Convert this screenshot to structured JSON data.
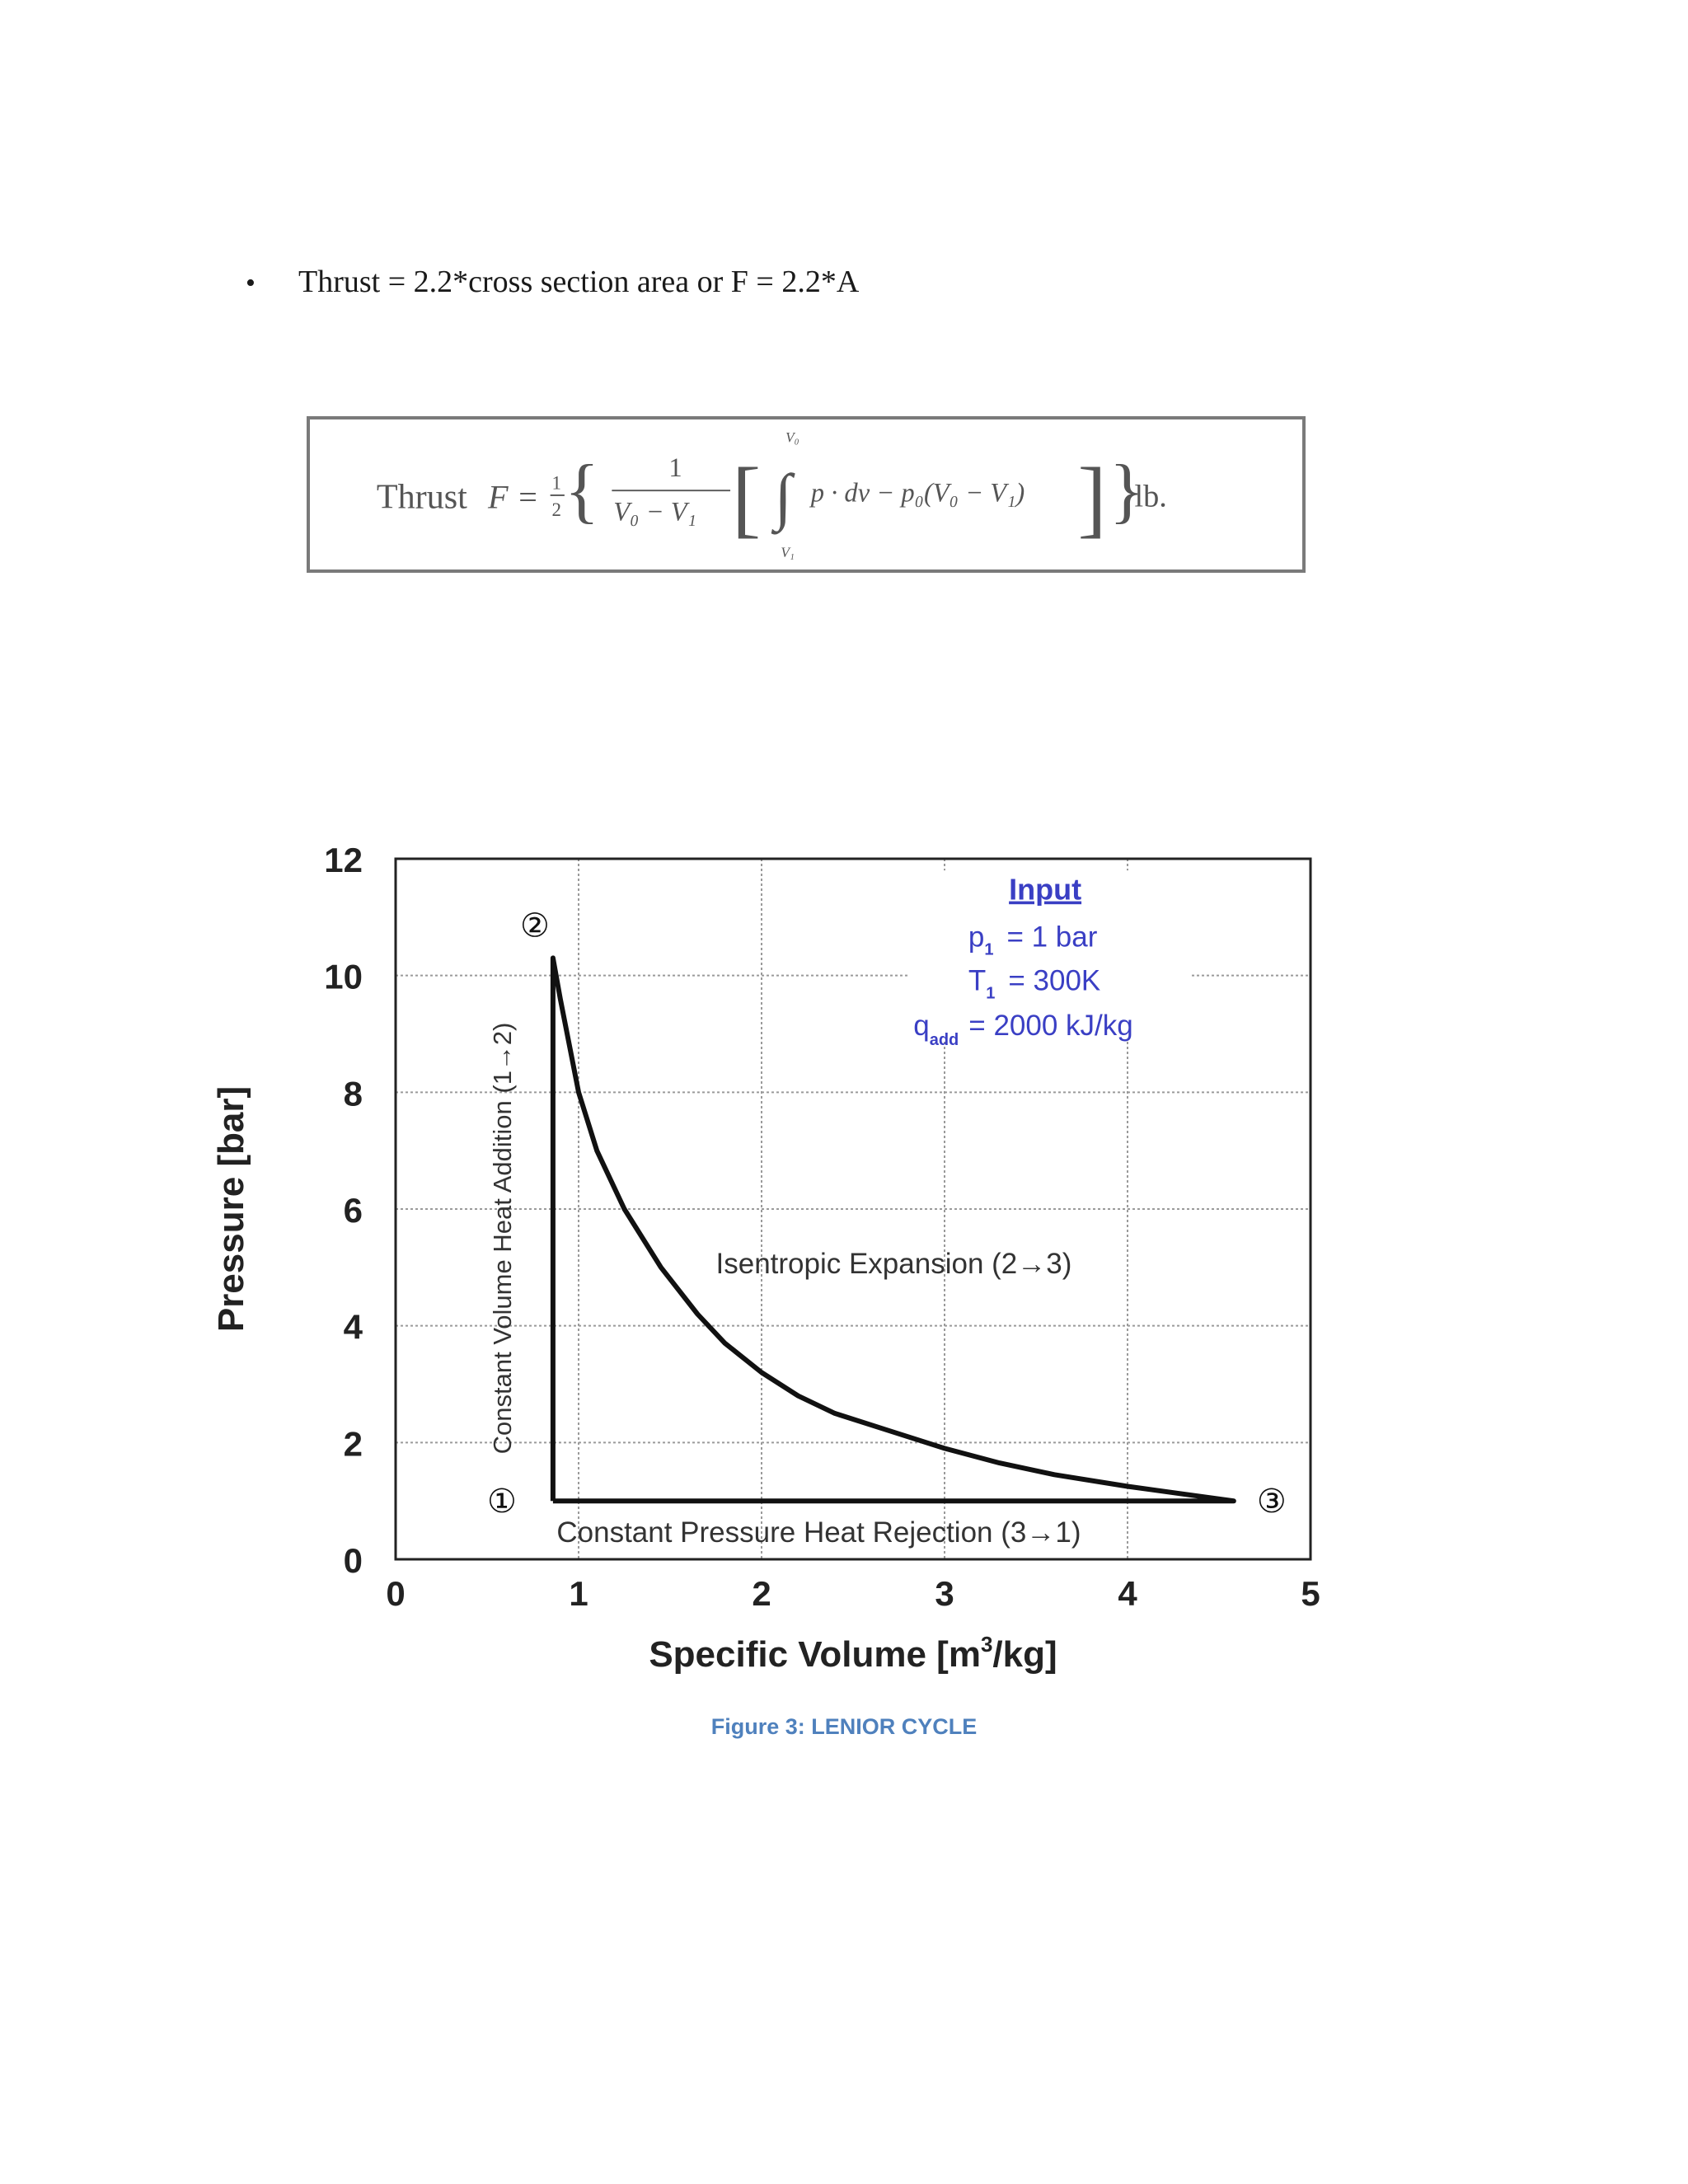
{
  "bullet": {
    "marker": "•",
    "text": "Thrust = 2.2*cross section area or F = 2.2*A"
  },
  "formula": {
    "lhs": "Thrust",
    "F_equals": "F =",
    "half_num": "1",
    "half_den": "2",
    "frac_num": "1",
    "frac_den": "V₀ − V₁",
    "integrand": "p · dv − p₀(V₀ − V₁)",
    "int_upper": "V₀",
    "int_lower": "V₁",
    "unit": "lb."
  },
  "chart_data": {
    "type": "line",
    "xlabel": "Specific Volume [m³/kg]",
    "xlabel_main": "Specific Volume [m",
    "xlabel_sup": "3",
    "xlabel_tail": "/kg]",
    "ylabel": "Pressure [bar]",
    "xlim": [
      0,
      5
    ],
    "ylim": [
      0,
      12
    ],
    "xticks": [
      "0",
      "1",
      "2",
      "3",
      "4",
      "5"
    ],
    "yticks": [
      "0",
      "2",
      "4",
      "6",
      "8",
      "10",
      "12"
    ],
    "grid": true,
    "series": [
      {
        "values": [
          {
            "x": 0.86,
            "y": 1.0
          },
          {
            "x": 0.86,
            "y": 10.3
          },
          {
            "x": 0.9,
            "y": 9.6
          },
          {
            "x": 1.0,
            "y": 8.0
          },
          {
            "x": 1.1,
            "y": 7.0
          },
          {
            "x": 1.25,
            "y": 6.0
          },
          {
            "x": 1.45,
            "y": 5.0
          },
          {
            "x": 1.65,
            "y": 4.2
          },
          {
            "x": 1.8,
            "y": 3.7
          },
          {
            "x": 2.0,
            "y": 3.2
          },
          {
            "x": 2.2,
            "y": 2.8
          },
          {
            "x": 2.4,
            "y": 2.5
          },
          {
            "x": 2.7,
            "y": 2.2
          },
          {
            "x": 3.0,
            "y": 1.9
          },
          {
            "x": 3.3,
            "y": 1.65
          },
          {
            "x": 3.6,
            "y": 1.45
          },
          {
            "x": 4.0,
            "y": 1.25
          },
          {
            "x": 4.3,
            "y": 1.12
          },
          {
            "x": 4.58,
            "y": 1.0
          },
          {
            "x": 0.86,
            "y": 1.0
          }
        ]
      }
    ],
    "points": [
      {
        "label": "①",
        "x": 0.86,
        "y": 1.0
      },
      {
        "label": "②",
        "x": 0.86,
        "y": 10.3
      },
      {
        "label": "③",
        "x": 4.58,
        "y": 1.0
      }
    ],
    "annotations": {
      "process_12": "Constant Volume Heat Addition (1→2)",
      "process_23": "Isentropic Expansion (2→3)",
      "process_31": "Constant Pressure Heat Rejection (3→1)"
    },
    "input_box": {
      "title": "Input",
      "p1_sym": "p",
      "p1_sub": "1",
      "p1_val": "= 1 bar",
      "t1_sym": "T",
      "t1_sub": "1",
      "t1_val": "= 300K",
      "q_sym": "q",
      "q_sub": "add",
      "q_val": "= 2000 kJ/kg",
      "color": "#3a3fc4"
    }
  },
  "caption": "Figure 3: LENIOR CYCLE"
}
